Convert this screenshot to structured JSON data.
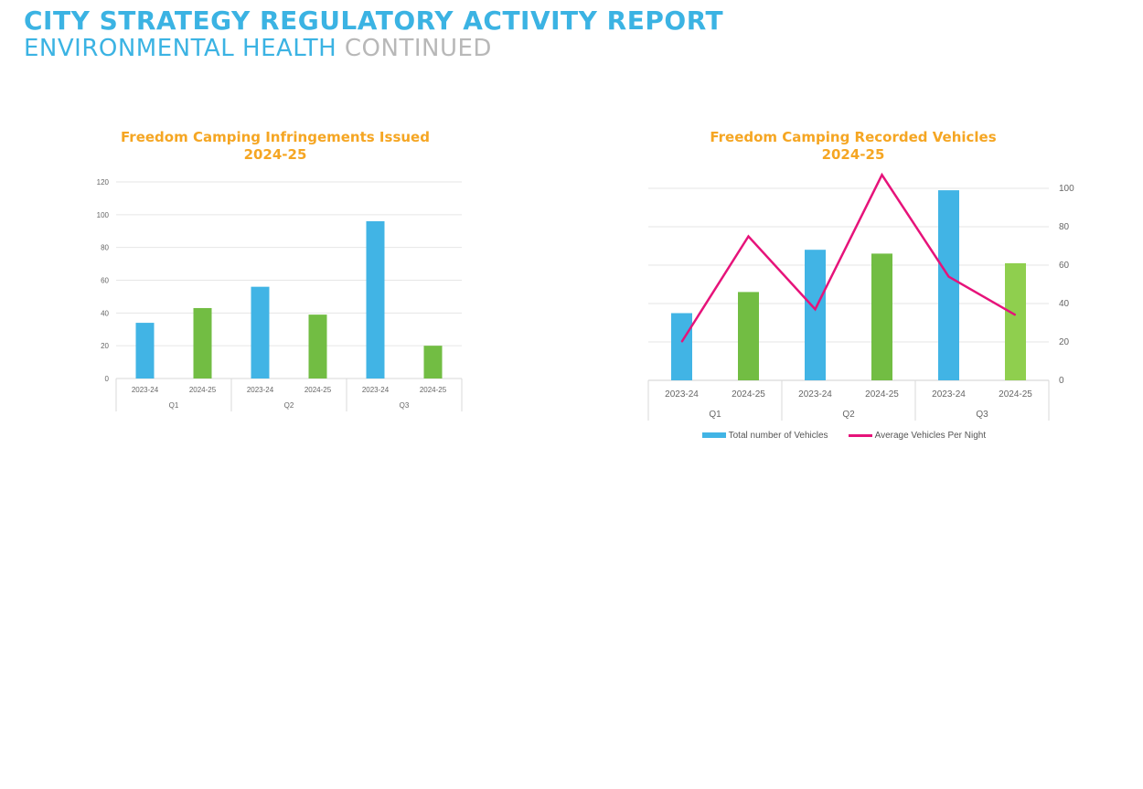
{
  "header": {
    "title": "CITY STRATEGY REGULATORY ACTIVITY REPORT",
    "subtitle_part1": "ENVIRONMENTAL HEALTH",
    "subtitle_part2": "CONTINUED"
  },
  "colors": {
    "header_blue": "#3bb3e3",
    "header_grey": "#b8b8b8",
    "title_orange": "#f5a623",
    "bar_blue": "#41b4e5",
    "bar_green": "#72bd43",
    "bar_light_green": "#8fcf4e",
    "line_pink": "#e6137a"
  },
  "chart_data": [
    {
      "type": "bar",
      "title_line1": "Freedom Camping Infringements Issued",
      "title_line2": "2024-25",
      "categories": [
        "2023-24",
        "2024-25",
        "2023-24",
        "2024-25",
        "2023-24",
        "2024-25"
      ],
      "groups": [
        "Q1",
        "Q2",
        "Q3"
      ],
      "values": [
        34,
        43,
        56,
        39,
        96,
        20
      ],
      "bar_colors": [
        "blue",
        "green",
        "blue",
        "green",
        "blue",
        "green"
      ],
      "ylim": [
        0,
        120
      ],
      "yticks": [
        0,
        20,
        40,
        60,
        80,
        100,
        120
      ],
      "grid": true
    },
    {
      "type": "bar+line",
      "title_line1": "Freedom Camping Recorded Vehicles",
      "title_line2": "2024-25",
      "categories": [
        "2023-24",
        "2024-25",
        "2023-24",
        "2024-25",
        "2023-24",
        "2024-25"
      ],
      "groups": [
        "Q1",
        "Q2",
        "Q3"
      ],
      "series": [
        {
          "name": "Total number of Vehicles",
          "type": "bar",
          "values": [
            35,
            46,
            68,
            66,
            99,
            61
          ],
          "bar_colors": [
            "blue",
            "green",
            "blue",
            "green",
            "blue",
            "lightgreen"
          ]
        },
        {
          "name": "Average Vehicles Per Night",
          "type": "line",
          "values": [
            20,
            75,
            37,
            107,
            54,
            34
          ]
        }
      ],
      "ylim": [
        0,
        100
      ],
      "yticks": [
        0,
        20,
        40,
        60,
        80,
        100
      ],
      "y_axis_side": "right",
      "legend": "bottom",
      "grid": true
    }
  ]
}
